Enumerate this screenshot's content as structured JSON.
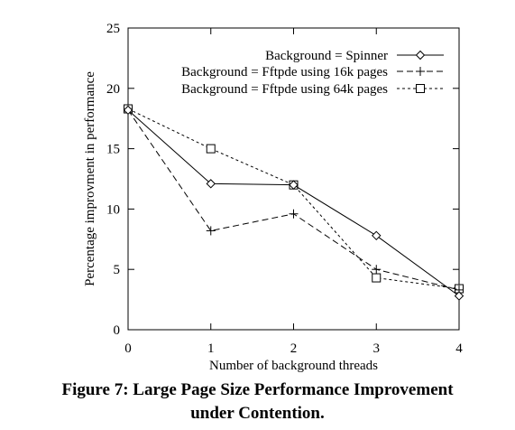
{
  "caption": {
    "line1": "Figure 7: Large Page Size Performance Improvement",
    "line2": "under Contention."
  },
  "chart_data": {
    "type": "line",
    "xlabel": "Number of background threads",
    "ylabel": "Percentage improvment in performance",
    "xlim": [
      0,
      4
    ],
    "ylim": [
      0,
      25
    ],
    "x_ticks": [
      "0",
      "1",
      "2",
      "3",
      "4"
    ],
    "y_ticks": [
      "0",
      "5",
      "10",
      "15",
      "20",
      "25"
    ],
    "grid": false,
    "legend_position": "top-right",
    "series": [
      {
        "name": "Background = Spinner",
        "marker": "diamond",
        "line_style": "solid",
        "x": [
          0,
          1,
          2,
          3,
          4
        ],
        "values": [
          18.2,
          12.1,
          12.0,
          7.8,
          2.8
        ]
      },
      {
        "name": "Background = Fftpde using 16k pages",
        "marker": "plus",
        "line_style": "dashed",
        "x": [
          0,
          1,
          2,
          3,
          4
        ],
        "values": [
          18.2,
          8.2,
          9.6,
          5.0,
          3.3
        ]
      },
      {
        "name": "Background = Fftpde using 64k pages",
        "marker": "square",
        "line_style": "dotted",
        "x": [
          0,
          1,
          2,
          3,
          4
        ],
        "values": [
          18.3,
          15.0,
          12.0,
          4.3,
          3.4
        ]
      }
    ]
  }
}
